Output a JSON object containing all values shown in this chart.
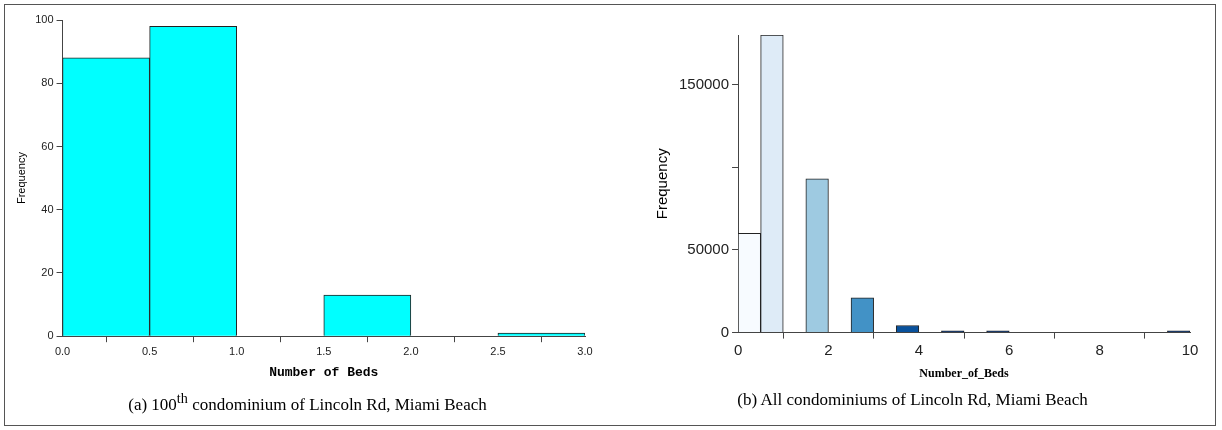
{
  "chart_data": [
    {
      "type": "histogram",
      "xlabel": "Number of Beds",
      "ylabel": "Frequency",
      "bins": [
        0,
        0.5,
        1,
        1.5,
        2,
        2.5,
        3
      ],
      "values": [
        88,
        98,
        0,
        13,
        0,
        1
      ],
      "color": "#00ffff",
      "xlim": [
        0,
        3
      ],
      "xticks": [
        {
          "value": 0,
          "label": "0.0"
        },
        {
          "value": 0.5,
          "label": "0.5"
        },
        {
          "value": 1,
          "label": "1.0"
        },
        {
          "value": 1.5,
          "label": "1.5"
        },
        {
          "value": 2,
          "label": "2.0"
        },
        {
          "value": 2.5,
          "label": "2.5"
        },
        {
          "value": 3,
          "label": "3.0"
        }
      ],
      "ylim": [
        0,
        100
      ],
      "yticks": [
        0,
        20,
        40,
        60,
        80,
        100
      ],
      "grid": false,
      "annotations": [
        "(a)  100$^{th}$ condominium of Lincoln Rd, Miami Beach"
      ]
    },
    {
      "type": "histogram",
      "xlabel": "Number_of_Beds",
      "ylabel": "Frequency",
      "bins": [
        0,
        0.5,
        1,
        1.5,
        2,
        2.5,
        3,
        3.5,
        4,
        4.5,
        5,
        5.5,
        6,
        6.5,
        7,
        7.5,
        8,
        8.5,
        9,
        9.5,
        10
      ],
      "values": [
        60000,
        180000,
        0,
        93000,
        0,
        21000,
        0,
        4300,
        0,
        1000,
        0,
        1000,
        0,
        0,
        0,
        0,
        0,
        0,
        0,
        1000
      ],
      "colors": [
        "#f7fbff",
        "#deebf7",
        "#c6dbef",
        "#9ecae1",
        "#6baed6",
        "#4292c6",
        "#2171b5",
        "#08519c",
        "#08306b",
        "#08306b",
        "#08306b",
        "#08306b",
        "#08306b",
        "#08306b",
        "#08306b",
        "#08306b",
        "#08306b",
        "#08306b",
        "#08306b",
        "#08306b"
      ],
      "xlim": [
        0,
        10
      ],
      "xticks": [
        0,
        2,
        4,
        6,
        8,
        10
      ],
      "ylim": [
        0,
        180000
      ],
      "yticks": [
        0,
        50000,
        {
          "value": 100000,
          "label": null
        },
        150000
      ],
      "grid": false,
      "annotations": [
        "(b)  All condominiums of Lincoln Rd, Miami Beach"
      ]
    }
  ]
}
